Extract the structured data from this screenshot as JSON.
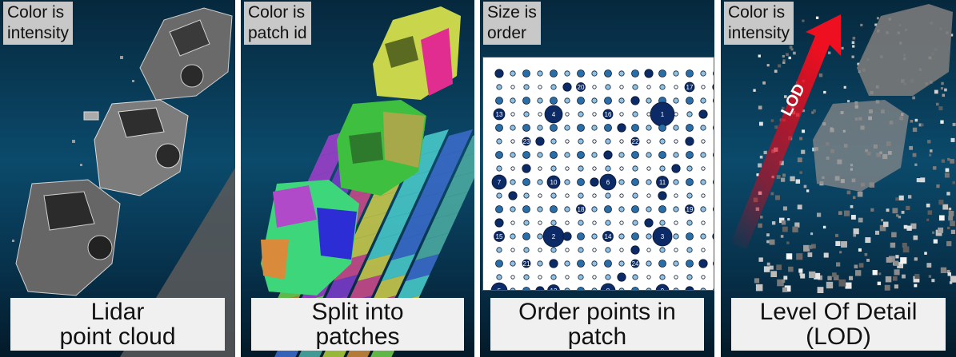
{
  "panels": [
    {
      "tag": "Color is\nintensity",
      "caption": "Lidar\npoint cloud"
    },
    {
      "tag": "Color is\npatch id",
      "caption": "Split into\npatches"
    },
    {
      "tag": "Size is\norder",
      "caption": "Order points in\npatch"
    },
    {
      "tag": "Color is\nintensity",
      "caption": "Level Of Detail\n(LOD)",
      "arrow_label": "LOD"
    }
  ],
  "order_labels": [
    "1",
    "2",
    "3",
    "4",
    "5",
    "6",
    "7",
    "8",
    "9",
    "10",
    "11",
    "12",
    "13",
    "14",
    "15",
    "16",
    "17",
    "18",
    "19",
    "20",
    "21",
    "22",
    "23",
    "24"
  ],
  "colors": {
    "accent_dark_blue": "#0b2a66",
    "point_blue": "#2a6ea8",
    "arrow_red": "#cc0a1e"
  }
}
